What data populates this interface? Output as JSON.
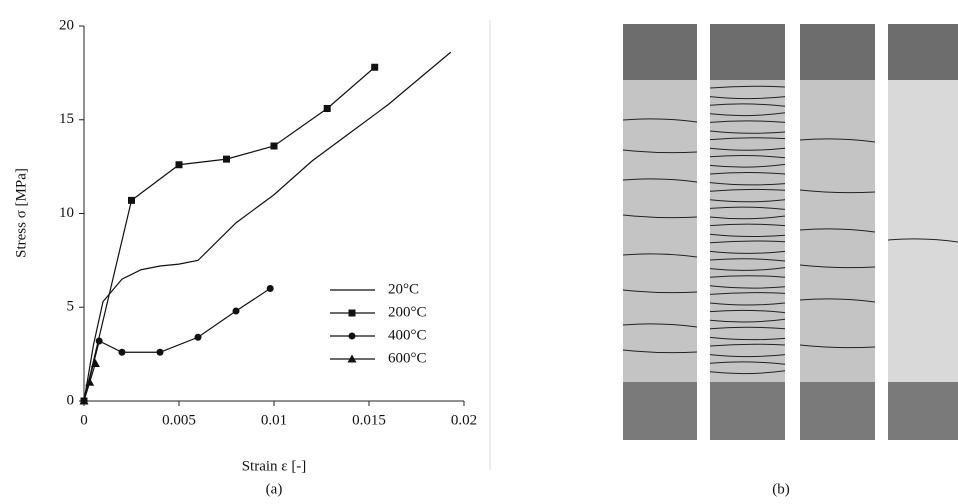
{
  "chart_data": {
    "type": "line",
    "x_label": "Strain ε [-]",
    "y_label": "Stress σ [MPa]",
    "caption": "(a)",
    "xlim": [
      0,
      0.02
    ],
    "xticks": [
      0,
      0.005,
      0.01,
      0.015,
      0.02
    ],
    "ylim": [
      0,
      20
    ],
    "yticks": [
      0,
      5,
      10,
      15,
      20
    ],
    "grid": false,
    "legend": "lower right",
    "series": [
      {
        "name": "20°C",
        "color": "#111111",
        "marker": "none",
        "x": [
          0,
          0.0005,
          0.001,
          0.0015,
          0.002,
          0.003,
          0.004,
          0.005,
          0.006,
          0.008,
          0.01,
          0.012,
          0.014,
          0.016,
          0.018,
          0.0193
        ],
        "values": [
          0,
          3,
          5.3,
          5.9,
          6.5,
          7,
          7.2,
          7.3,
          7.5,
          9.5,
          11,
          12.8,
          14.3,
          15.8,
          17.5,
          18.6
        ]
      },
      {
        "name": "200°C",
        "color": "#111111",
        "marker": "square",
        "x": [
          0,
          0.0025,
          0.005,
          0.0075,
          0.01,
          0.0128,
          0.0153
        ],
        "values": [
          0,
          10.7,
          12.6,
          12.9,
          13.6,
          15.6,
          17.8
        ]
      },
      {
        "name": "400°C",
        "color": "#111111",
        "marker": "circle",
        "x": [
          0,
          0.0008,
          0.002,
          0.004,
          0.006,
          0.008,
          0.0098
        ],
        "values": [
          0,
          3.2,
          2.6,
          2.6,
          3.4,
          4.8,
          6.0
        ]
      },
      {
        "name": "600°C",
        "color": "#111111",
        "marker": "triangle",
        "x": [
          0,
          0.0003,
          0.0006
        ],
        "values": [
          0,
          1.0,
          2.0
        ]
      }
    ]
  },
  "photo": {
    "caption": "(b)"
  }
}
